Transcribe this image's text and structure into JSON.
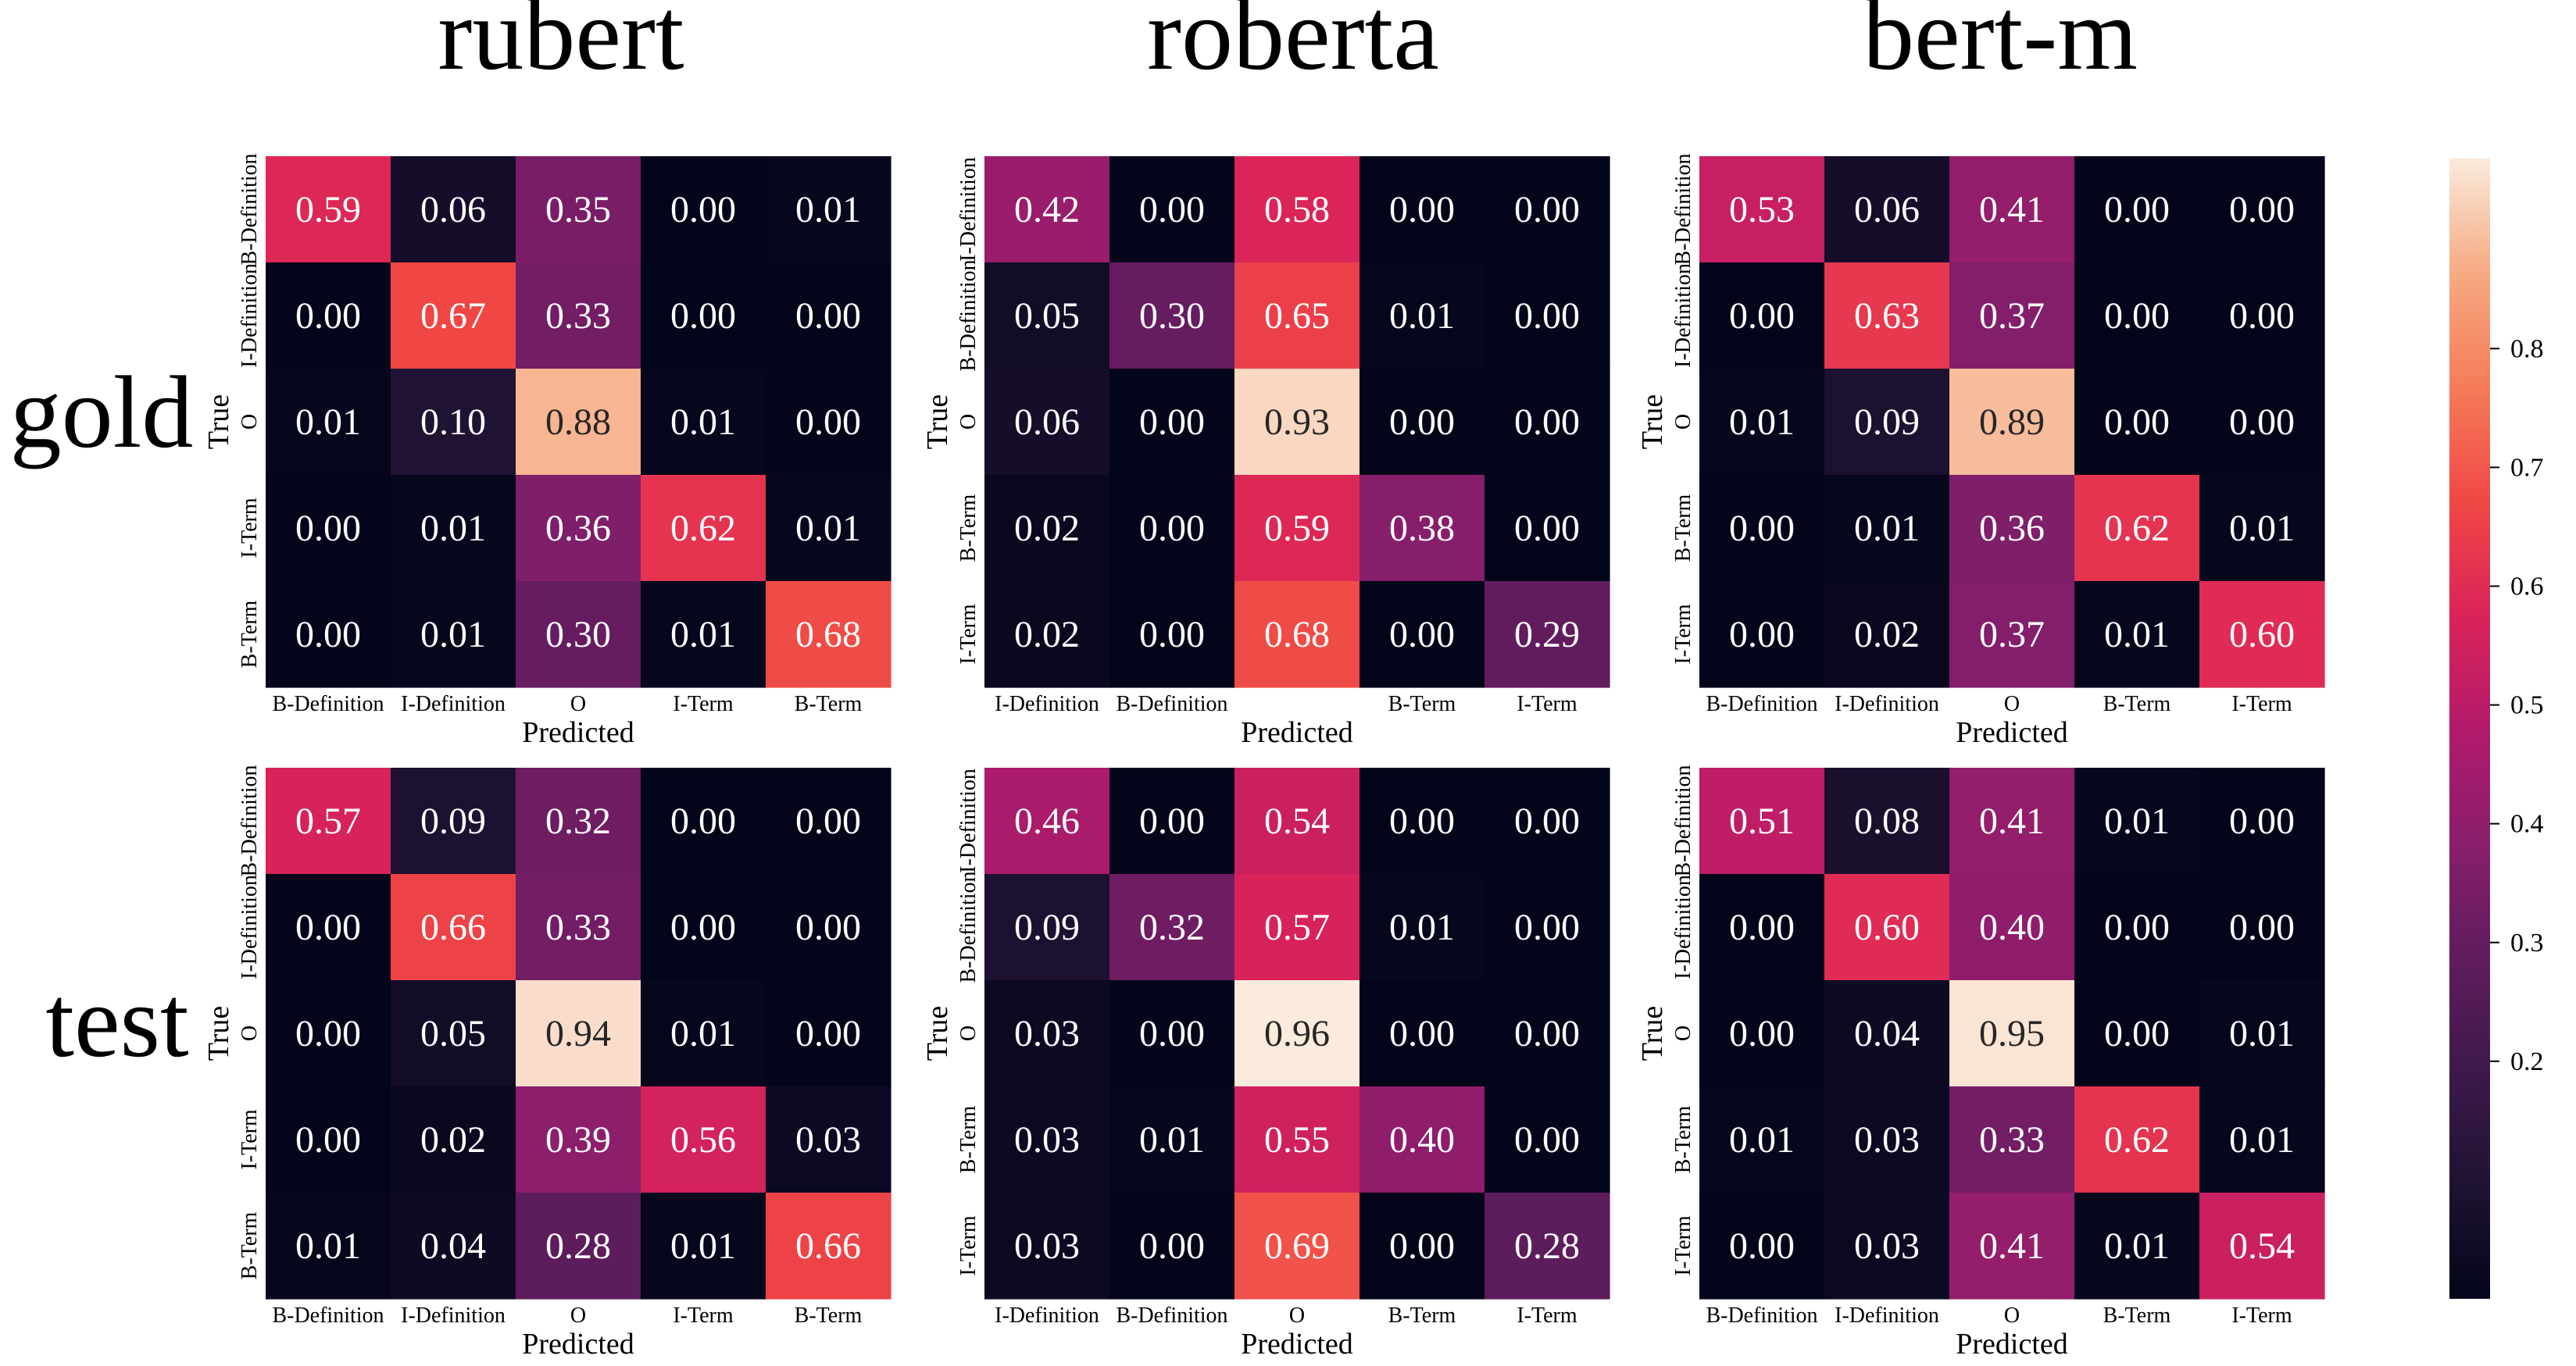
{
  "figure": {
    "col_titles": [
      "rubert",
      "roberta",
      "bert-m"
    ],
    "row_titles": [
      "gold",
      "test"
    ],
    "xlabel": "Predicted",
    "ylabel": "True"
  },
  "chart_data": [
    {
      "type": "heatmap",
      "row": "gold",
      "model": "rubert",
      "row_labels": [
        "B-Definition",
        "I-Definition",
        "O",
        "I-Term",
        "B-Term"
      ],
      "col_labels": [
        "B-Definition",
        "I-Definition",
        "O",
        "I-Term",
        "B-Term"
      ],
      "values": [
        [
          0.59,
          0.06,
          0.35,
          0.0,
          0.01
        ],
        [
          0.0,
          0.67,
          0.33,
          0.0,
          0.0
        ],
        [
          0.01,
          0.1,
          0.88,
          0.01,
          0.0
        ],
        [
          0.0,
          0.01,
          0.36,
          0.62,
          0.01
        ],
        [
          0.0,
          0.01,
          0.3,
          0.01,
          0.68
        ]
      ],
      "xlabel": "Predicted",
      "ylabel": "True"
    },
    {
      "type": "heatmap",
      "row": "gold",
      "model": "roberta",
      "row_labels": [
        "I-Definition",
        "B-Definition",
        "O",
        "B-Term",
        "I-Term"
      ],
      "col_labels": [
        "I-Definition",
        "B-Definition",
        "",
        "B-Term",
        "I-Term"
      ],
      "values": [
        [
          0.42,
          0.0,
          0.58,
          0.0,
          0.0
        ],
        [
          0.05,
          0.3,
          0.65,
          0.01,
          0.0
        ],
        [
          0.06,
          0.0,
          0.93,
          0.0,
          0.0
        ],
        [
          0.02,
          0.0,
          0.59,
          0.38,
          0.0
        ],
        [
          0.02,
          0.0,
          0.68,
          0.0,
          0.29
        ]
      ],
      "xlabel": "Predicted",
      "ylabel": "True"
    },
    {
      "type": "heatmap",
      "row": "gold",
      "model": "bert-m",
      "row_labels": [
        "B-Definition",
        "I-Definition",
        "O",
        "B-Term",
        "I-Term"
      ],
      "col_labels": [
        "B-Definition",
        "I-Definition",
        "O",
        "B-Term",
        "I-Term"
      ],
      "values": [
        [
          0.53,
          0.06,
          0.41,
          0.0,
          0.0
        ],
        [
          0.0,
          0.63,
          0.37,
          0.0,
          0.0
        ],
        [
          0.01,
          0.09,
          0.89,
          0.0,
          0.0
        ],
        [
          0.0,
          0.01,
          0.36,
          0.62,
          0.01
        ],
        [
          0.0,
          0.02,
          0.37,
          0.01,
          0.6
        ]
      ],
      "xlabel": "Predicted",
      "ylabel": "True"
    },
    {
      "type": "heatmap",
      "row": "test",
      "model": "rubert",
      "row_labels": [
        "B-Definition",
        "I-Definition",
        "O",
        "I-Term",
        "B-Term"
      ],
      "col_labels": [
        "B-Definition",
        "I-Definition",
        "O",
        "I-Term",
        "B-Term"
      ],
      "values": [
        [
          0.57,
          0.09,
          0.32,
          0.0,
          0.0
        ],
        [
          0.0,
          0.66,
          0.33,
          0.0,
          0.0
        ],
        [
          0.0,
          0.05,
          0.94,
          0.01,
          0.0
        ],
        [
          0.0,
          0.02,
          0.39,
          0.56,
          0.03
        ],
        [
          0.01,
          0.04,
          0.28,
          0.01,
          0.66
        ]
      ],
      "xlabel": "Predicted",
      "ylabel": "True"
    },
    {
      "type": "heatmap",
      "row": "test",
      "model": "roberta",
      "row_labels": [
        "I-Definition",
        "B-Definition",
        "O",
        "B-Term",
        "I-Term"
      ],
      "col_labels": [
        "I-Definition",
        "B-Definition",
        "O",
        "B-Term",
        "I-Term"
      ],
      "values": [
        [
          0.46,
          0.0,
          0.54,
          0.0,
          0.0
        ],
        [
          0.09,
          0.32,
          0.57,
          0.01,
          0.0
        ],
        [
          0.03,
          0.0,
          0.96,
          0.0,
          0.0
        ],
        [
          0.03,
          0.01,
          0.55,
          0.4,
          0.0
        ],
        [
          0.03,
          0.0,
          0.69,
          0.0,
          0.28
        ]
      ],
      "xlabel": "Predicted",
      "ylabel": "True"
    },
    {
      "type": "heatmap",
      "row": "test",
      "model": "bert-m",
      "row_labels": [
        "B-Definition",
        "I-Definition",
        "O",
        "B-Term",
        "I-Term"
      ],
      "col_labels": [
        "B-Definition",
        "I-Definition",
        "O",
        "B-Term",
        "I-Term"
      ],
      "values": [
        [
          0.51,
          0.08,
          0.41,
          0.01,
          0.0
        ],
        [
          0.0,
          0.6,
          0.4,
          0.0,
          0.0
        ],
        [
          0.0,
          0.04,
          0.95,
          0.0,
          0.01
        ],
        [
          0.01,
          0.03,
          0.33,
          0.62,
          0.01
        ],
        [
          0.0,
          0.03,
          0.41,
          0.01,
          0.54
        ]
      ],
      "xlabel": "Predicted",
      "ylabel": "True"
    }
  ],
  "colorbar": {
    "colormap": "rocket",
    "vmin": 0.0,
    "vmax": 0.96,
    "ticks": [
      0.2,
      0.3,
      0.4,
      0.5,
      0.6,
      0.7,
      0.8
    ],
    "tick_labels": [
      "0.2",
      "0.3",
      "0.4",
      "0.5",
      "0.6",
      "0.7",
      "0.8"
    ]
  }
}
